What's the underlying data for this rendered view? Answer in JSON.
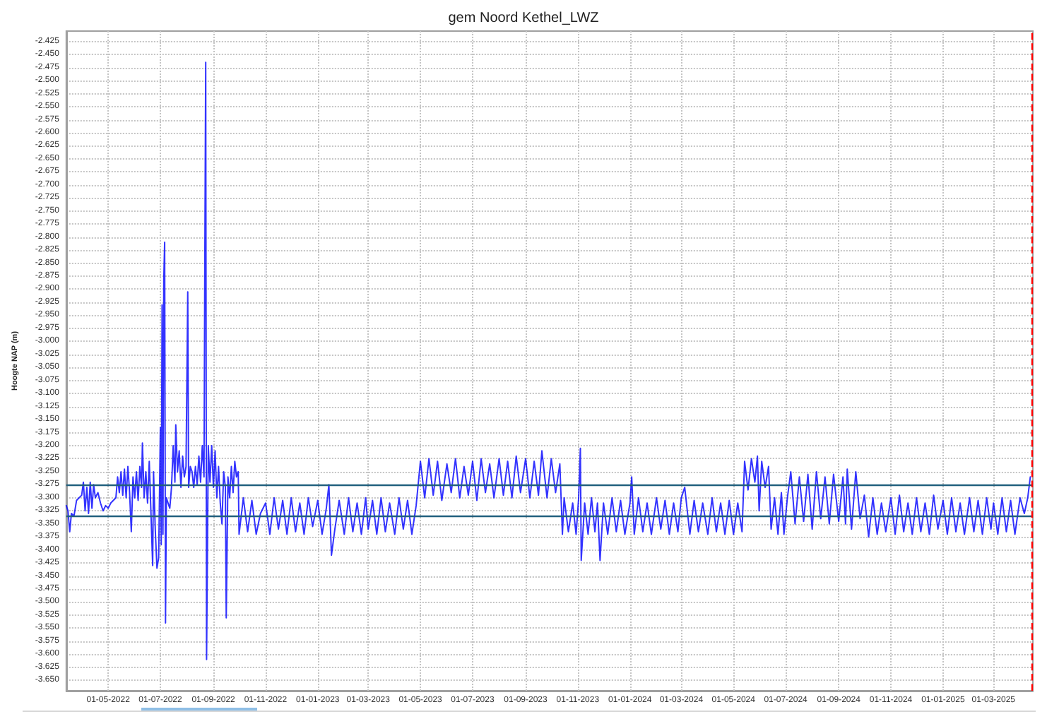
{
  "chart_data": {
    "type": "line",
    "title": "gem Noord Kethel_LWZ",
    "ylabel": "Hoogte NAP (m)",
    "x": [
      "2022-03-13",
      "2022-03-15",
      "2022-03-17",
      "2022-03-19",
      "2022-03-22",
      "2022-03-25",
      "2022-03-28",
      "2022-03-31",
      "2022-04-02",
      "2022-04-04",
      "2022-04-06",
      "2022-04-08",
      "2022-04-10",
      "2022-04-12",
      "2022-04-14",
      "2022-04-16",
      "2022-04-19",
      "2022-04-22",
      "2022-04-25",
      "2022-04-28",
      "2022-05-01",
      "2022-05-04",
      "2022-05-07",
      "2022-05-10",
      "2022-05-12",
      "2022-05-14",
      "2022-05-16",
      "2022-05-18",
      "2022-05-20",
      "2022-05-22",
      "2022-05-24",
      "2022-05-26",
      "2022-05-28",
      "2022-05-30",
      "2022-06-01",
      "2022-06-03",
      "2022-06-05",
      "2022-06-07",
      "2022-06-09",
      "2022-06-10",
      "2022-06-12",
      "2022-06-14",
      "2022-06-16",
      "2022-06-18",
      "2022-06-20",
      "2022-06-22",
      "2022-06-23",
      "2022-06-25",
      "2022-06-27",
      "2022-06-29",
      "2022-07-01",
      "2022-07-02",
      "2022-07-03",
      "2022-07-04",
      "2022-07-05",
      "2022-07-06",
      "2022-07-07",
      "2022-07-08",
      "2022-07-10",
      "2022-07-12",
      "2022-07-14",
      "2022-07-16",
      "2022-07-18",
      "2022-07-19",
      "2022-07-21",
      "2022-07-23",
      "2022-07-25",
      "2022-07-27",
      "2022-07-29",
      "2022-07-31",
      "2022-08-02",
      "2022-08-03",
      "2022-08-05",
      "2022-08-07",
      "2022-08-09",
      "2022-08-11",
      "2022-08-13",
      "2022-08-15",
      "2022-08-17",
      "2022-08-19",
      "2022-08-21",
      "2022-08-22",
      "2022-08-23",
      "2022-08-24",
      "2022-08-26",
      "2022-08-28",
      "2022-08-30",
      "2022-09-01",
      "2022-09-03",
      "2022-09-05",
      "2022-09-07",
      "2022-09-09",
      "2022-09-11",
      "2022-09-13",
      "2022-09-15",
      "2022-09-16",
      "2022-09-18",
      "2022-09-20",
      "2022-09-22",
      "2022-09-24",
      "2022-09-26",
      "2022-09-28",
      "2022-09-30",
      "2022-10-01",
      "2022-10-06",
      "2022-10-11",
      "2022-10-16",
      "2022-10-21",
      "2022-10-26",
      "2022-11-01",
      "2022-11-06",
      "2022-11-11",
      "2022-11-16",
      "2022-11-21",
      "2022-11-26",
      "2022-12-01",
      "2022-12-06",
      "2022-12-11",
      "2022-12-16",
      "2022-12-21",
      "2022-12-26",
      "2023-01-01",
      "2023-01-06",
      "2023-01-11",
      "2023-01-14",
      "2023-01-17",
      "2023-01-21",
      "2023-01-26",
      "2023-02-01",
      "2023-02-06",
      "2023-02-11",
      "2023-02-16",
      "2023-02-21",
      "2023-02-26",
      "2023-03-01",
      "2023-03-06",
      "2023-03-11",
      "2023-03-16",
      "2023-03-21",
      "2023-03-26",
      "2023-04-01",
      "2023-04-06",
      "2023-04-11",
      "2023-04-16",
      "2023-04-21",
      "2023-04-26",
      "2023-05-01",
      "2023-05-06",
      "2023-05-11",
      "2023-05-16",
      "2023-05-21",
      "2023-05-26",
      "2023-06-01",
      "2023-06-06",
      "2023-06-11",
      "2023-06-16",
      "2023-06-21",
      "2023-06-26",
      "2023-07-01",
      "2023-07-06",
      "2023-07-11",
      "2023-07-16",
      "2023-07-21",
      "2023-07-26",
      "2023-08-01",
      "2023-08-06",
      "2023-08-11",
      "2023-08-16",
      "2023-08-21",
      "2023-08-26",
      "2023-09-01",
      "2023-09-06",
      "2023-09-11",
      "2023-09-16",
      "2023-09-20",
      "2023-09-26",
      "2023-10-01",
      "2023-10-06",
      "2023-10-11",
      "2023-10-14",
      "2023-10-16",
      "2023-10-21",
      "2023-10-26",
      "2023-10-30",
      "2023-11-02",
      "2023-11-04",
      "2023-11-05",
      "2023-11-09",
      "2023-11-13",
      "2023-11-17",
      "2023-11-21",
      "2023-11-24",
      "2023-11-27",
      "2023-12-01",
      "2023-12-06",
      "2023-12-11",
      "2023-12-16",
      "2023-12-21",
      "2023-12-26",
      "2024-01-01",
      "2024-01-03",
      "2024-01-06",
      "2024-01-11",
      "2024-01-16",
      "2024-01-21",
      "2024-01-26",
      "2024-02-01",
      "2024-02-06",
      "2024-02-11",
      "2024-02-16",
      "2024-02-21",
      "2024-02-26",
      "2024-03-01",
      "2024-03-05",
      "2024-03-11",
      "2024-03-16",
      "2024-03-21",
      "2024-03-26",
      "2024-04-01",
      "2024-04-06",
      "2024-04-11",
      "2024-04-16",
      "2024-04-21",
      "2024-04-26",
      "2024-05-01",
      "2024-05-06",
      "2024-05-11",
      "2024-05-14",
      "2024-05-18",
      "2024-05-22",
      "2024-05-26",
      "2024-05-29",
      "2024-05-31",
      "2024-06-03",
      "2024-06-07",
      "2024-06-11",
      "2024-06-14",
      "2024-06-18",
      "2024-06-22",
      "2024-06-26",
      "2024-06-29",
      "2024-07-03",
      "2024-07-07",
      "2024-07-12",
      "2024-07-17",
      "2024-07-22",
      "2024-07-27",
      "2024-08-01",
      "2024-08-06",
      "2024-08-11",
      "2024-08-16",
      "2024-08-21",
      "2024-08-26",
      "2024-09-01",
      "2024-09-06",
      "2024-09-09",
      "2024-09-11",
      "2024-09-16",
      "2024-09-21",
      "2024-09-26",
      "2024-10-01",
      "2024-10-06",
      "2024-10-11",
      "2024-10-16",
      "2024-10-21",
      "2024-10-26",
      "2024-11-01",
      "2024-11-06",
      "2024-11-11",
      "2024-11-16",
      "2024-11-21",
      "2024-11-26",
      "2024-12-01",
      "2024-12-06",
      "2024-12-11",
      "2024-12-16",
      "2024-12-21",
      "2024-12-26",
      "2025-01-01",
      "2025-01-06",
      "2025-01-11",
      "2025-01-16",
      "2025-01-21",
      "2025-01-26",
      "2025-02-01",
      "2025-02-06",
      "2025-02-11",
      "2025-02-16",
      "2025-02-21",
      "2025-02-26",
      "2025-03-01",
      "2025-03-06",
      "2025-03-11",
      "2025-03-16",
      "2025-03-21",
      "2025-03-26",
      "2025-04-01",
      "2025-04-06",
      "2025-04-10",
      "2025-04-13"
    ],
    "series": [
      {
        "color": "#0000ff",
        "values": [
          -3.315,
          -3.325,
          -3.365,
          -3.33,
          -3.335,
          -3.305,
          -3.3,
          -3.295,
          -3.27,
          -3.325,
          -3.28,
          -3.33,
          -3.27,
          -3.32,
          -3.275,
          -3.3,
          -3.29,
          -3.31,
          -3.325,
          -3.315,
          -3.32,
          -3.31,
          -3.305,
          -3.3,
          -3.26,
          -3.29,
          -3.25,
          -3.295,
          -3.245,
          -3.3,
          -3.24,
          -3.29,
          -3.365,
          -3.26,
          -3.3,
          -3.25,
          -3.305,
          -3.24,
          -3.28,
          -3.195,
          -3.3,
          -3.25,
          -3.31,
          -3.23,
          -3.33,
          -3.43,
          -3.25,
          -3.36,
          -3.435,
          -3.415,
          -3.165,
          -3.39,
          -2.93,
          -3.37,
          -2.88,
          -2.81,
          -3.54,
          -3.3,
          -3.31,
          -3.32,
          -3.28,
          -3.2,
          -3.27,
          -3.16,
          -3.25,
          -3.21,
          -3.28,
          -3.22,
          -3.26,
          -3.24,
          -2.905,
          -3.28,
          -3.24,
          -3.25,
          -3.28,
          -3.24,
          -3.275,
          -3.22,
          -3.27,
          -3.2,
          -3.26,
          -2.835,
          -2.465,
          -3.61,
          -3.2,
          -3.27,
          -3.2,
          -3.28,
          -3.21,
          -3.3,
          -3.24,
          -3.31,
          -3.35,
          -3.25,
          -3.28,
          -3.53,
          -3.26,
          -3.3,
          -3.24,
          -3.29,
          -3.23,
          -3.26,
          -3.25,
          -3.37,
          -3.3,
          -3.365,
          -3.305,
          -3.37,
          -3.33,
          -3.31,
          -3.37,
          -3.3,
          -3.36,
          -3.305,
          -3.37,
          -3.3,
          -3.365,
          -3.31,
          -3.37,
          -3.3,
          -3.355,
          -3.305,
          -3.37,
          -3.32,
          -3.275,
          -3.41,
          -3.36,
          -3.305,
          -3.37,
          -3.3,
          -3.365,
          -3.31,
          -3.37,
          -3.3,
          -3.36,
          -3.305,
          -3.37,
          -3.3,
          -3.365,
          -3.31,
          -3.37,
          -3.3,
          -3.36,
          -3.305,
          -3.37,
          -3.315,
          -3.23,
          -3.3,
          -3.225,
          -3.295,
          -3.23,
          -3.305,
          -3.235,
          -3.29,
          -3.225,
          -3.3,
          -3.24,
          -3.295,
          -3.23,
          -3.305,
          -3.225,
          -3.29,
          -3.235,
          -3.3,
          -3.225,
          -3.295,
          -3.23,
          -3.3,
          -3.22,
          -3.29,
          -3.225,
          -3.3,
          -3.23,
          -3.295,
          -3.21,
          -3.3,
          -3.225,
          -3.29,
          -3.235,
          -3.37,
          -3.3,
          -3.365,
          -3.31,
          -3.37,
          -3.3,
          -3.205,
          -3.42,
          -3.31,
          -3.37,
          -3.3,
          -3.365,
          -3.31,
          -3.42,
          -3.31,
          -3.37,
          -3.3,
          -3.365,
          -3.305,
          -3.37,
          -3.31,
          -3.26,
          -3.37,
          -3.3,
          -3.365,
          -3.31,
          -3.37,
          -3.3,
          -3.36,
          -3.305,
          -3.37,
          -3.31,
          -3.365,
          -3.3,
          -3.28,
          -3.37,
          -3.305,
          -3.365,
          -3.31,
          -3.37,
          -3.3,
          -3.365,
          -3.31,
          -3.37,
          -3.305,
          -3.37,
          -3.31,
          -3.365,
          -3.23,
          -3.285,
          -3.225,
          -3.27,
          -3.22,
          -3.325,
          -3.23,
          -3.28,
          -3.24,
          -3.36,
          -3.3,
          -3.37,
          -3.29,
          -3.37,
          -3.3,
          -3.25,
          -3.35,
          -3.26,
          -3.345,
          -3.255,
          -3.36,
          -3.25,
          -3.34,
          -3.26,
          -3.35,
          -3.255,
          -3.345,
          -3.26,
          -3.35,
          -3.245,
          -3.36,
          -3.25,
          -3.34,
          -3.295,
          -3.375,
          -3.3,
          -3.37,
          -3.31,
          -3.365,
          -3.3,
          -3.37,
          -3.295,
          -3.365,
          -3.31,
          -3.37,
          -3.3,
          -3.365,
          -3.31,
          -3.37,
          -3.295,
          -3.36,
          -3.305,
          -3.37,
          -3.3,
          -3.365,
          -3.31,
          -3.37,
          -3.3,
          -3.365,
          -3.305,
          -3.37,
          -3.3,
          -3.36,
          -3.31,
          -3.37,
          -3.3,
          -3.365,
          -3.305,
          -3.37,
          -3.3,
          -3.33,
          -3.3,
          -3.26
        ]
      }
    ],
    "xlim": [
      "2022-03-13",
      "2025-04-16"
    ],
    "xticks": [
      {
        "value": "2022-05-01",
        "label": "01-05-2022"
      },
      {
        "value": "2022-07-01",
        "label": "01-07-2022"
      },
      {
        "value": "2022-09-01",
        "label": "01-09-2022"
      },
      {
        "value": "2022-11-01",
        "label": "01-11-2022"
      },
      {
        "value": "2023-01-01",
        "label": "01-01-2023"
      },
      {
        "value": "2023-03-01",
        "label": "01-03-2023"
      },
      {
        "value": "2023-05-01",
        "label": "01-05-2023"
      },
      {
        "value": "2023-07-01",
        "label": "01-07-2023"
      },
      {
        "value": "2023-09-01",
        "label": "01-09-2023"
      },
      {
        "value": "2023-11-01",
        "label": "01-11-2023"
      },
      {
        "value": "2024-01-01",
        "label": "01-01-2024"
      },
      {
        "value": "2024-03-01",
        "label": "01-03-2024"
      },
      {
        "value": "2024-05-01",
        "label": "01-05-2024"
      },
      {
        "value": "2024-07-01",
        "label": "01-07-2024"
      },
      {
        "value": "2024-09-01",
        "label": "01-09-2024"
      },
      {
        "value": "2024-11-01",
        "label": "01-11-2024"
      },
      {
        "value": "2025-01-01",
        "label": "01-01-2025"
      },
      {
        "value": "2025-03-01",
        "label": "01-03-2025"
      }
    ],
    "ylim": [
      -3.67,
      -2.405
    ],
    "yticks": [
      -2.425,
      {
        "value": -2.45,
        "label": "-2.450"
      },
      -2.475,
      {
        "value": -2.5,
        "label": "-2.500"
      },
      -2.525,
      {
        "value": -2.55,
        "label": "-2.550"
      },
      -2.575,
      {
        "value": -2.6,
        "label": "-2.600"
      },
      -2.625,
      {
        "value": -2.65,
        "label": "-2.650"
      },
      -2.675,
      {
        "value": -2.7,
        "label": "-2.700"
      },
      -2.725,
      {
        "value": -2.75,
        "label": "-2.750"
      },
      -2.775,
      {
        "value": -2.8,
        "label": "-2.800"
      },
      -2.825,
      {
        "value": -2.85,
        "label": "-2.850"
      },
      -2.875,
      {
        "value": -2.9,
        "label": "-2.900"
      },
      -2.925,
      {
        "value": -2.95,
        "label": "-2.950"
      },
      -2.975,
      {
        "value": -3,
        "label": "-3.000"
      },
      -3.025,
      {
        "value": -3.05,
        "label": "-3.050"
      },
      -3.075,
      {
        "value": -3.1,
        "label": "-3.100"
      },
      -3.125,
      {
        "value": -3.15,
        "label": "-3.150"
      },
      -3.175,
      {
        "value": -3.2,
        "label": "-3.200"
      },
      -3.225,
      {
        "value": -3.25,
        "label": "-3.250"
      },
      -3.275,
      {
        "value": -3.3,
        "label": "-3.300"
      },
      -3.325,
      {
        "value": -3.35,
        "label": "-3.350"
      },
      -3.375,
      {
        "value": -3.4,
        "label": "-3.400"
      },
      -3.425,
      {
        "value": -3.45,
        "label": "-3.450"
      },
      -3.475,
      {
        "value": -3.5,
        "label": "-3.500"
      },
      -3.525,
      {
        "value": -3.55,
        "label": "-3.550"
      },
      -3.575,
      {
        "value": -3.6,
        "label": "-3.600"
      },
      -3.625,
      {
        "value": -3.65,
        "label": "-3.650"
      }
    ],
    "ref_lines": [
      {
        "axis": "y",
        "value": -3.275,
        "label": null,
        "color": "#22607e"
      },
      {
        "axis": "y",
        "value": -3.335,
        "label": null,
        "color": "#22607e"
      },
      {
        "axis": "x",
        "value": "2025-04-15",
        "label": null,
        "color": "#ff0000",
        "line_style": "dashed"
      }
    ],
    "grid": true
  }
}
